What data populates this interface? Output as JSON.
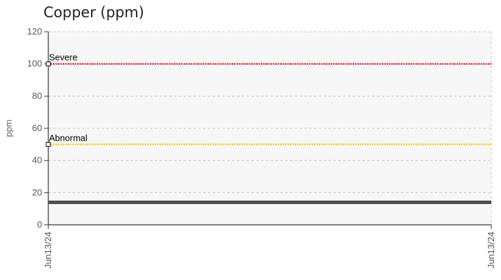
{
  "chart_data": {
    "type": "line",
    "title": "Copper (ppm)",
    "ylabel": "ppm",
    "xlabel": "",
    "ylim": [
      0,
      120
    ],
    "yticks": [
      0,
      20,
      40,
      60,
      80,
      100,
      120
    ],
    "x_tick_labels": [
      "Jun13/24",
      "Jun13/24"
    ],
    "grid": true,
    "series": [
      {
        "x": [
          "Jun13/24",
          "Jun13/24"
        ],
        "values": [
          14,
          14
        ],
        "color": "#4d4d4d",
        "style": "solid"
      }
    ],
    "thresholds": [
      {
        "name": "Severe",
        "value": 100,
        "color": "#e8000b",
        "style": "dotted"
      },
      {
        "name": "Abnormal",
        "value": 50,
        "color": "#f2c500",
        "style": "dotted"
      }
    ],
    "colors": {
      "plot_background": "#f7f7f7",
      "grid": "#cccccc",
      "axis": "#333333"
    }
  }
}
